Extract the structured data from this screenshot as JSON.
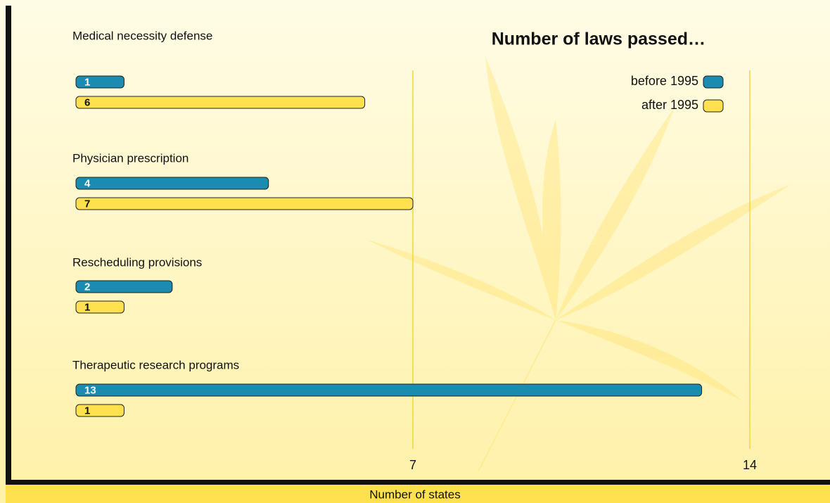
{
  "chart_data": {
    "type": "bar",
    "orientation": "horizontal",
    "title": "Number of laws passed…",
    "x_label": "Number of states",
    "categories": [
      "Medical necessity defense",
      "Physician prescription",
      "Rescheduling provisions",
      "Therapeutic research programs"
    ],
    "series": [
      {
        "name": "before 1995",
        "color": "#1b8bb0",
        "values": [
          1,
          4,
          2,
          13
        ]
      },
      {
        "name": "after 1995",
        "color": "#ffe04e",
        "values": [
          6,
          7,
          1,
          1
        ]
      }
    ],
    "xlim": [
      0,
      14
    ],
    "xticks": [
      7,
      14
    ],
    "grid": true,
    "legend": "top-right"
  }
}
